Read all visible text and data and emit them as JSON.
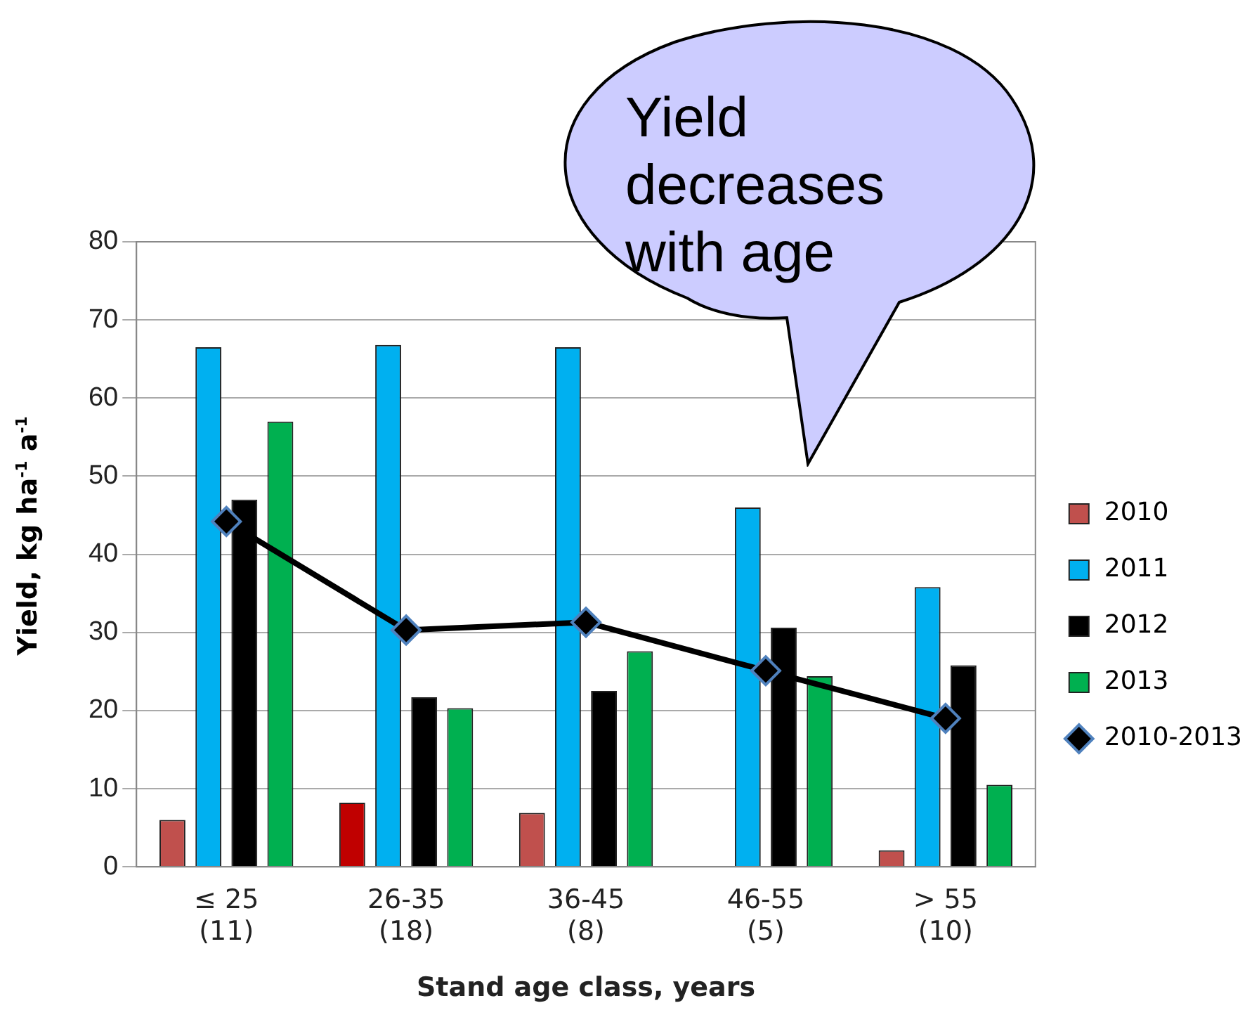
{
  "chart_data": {
    "type": "bar",
    "xlabel": "Stand age class, years",
    "ylabel": "Yield, kg ha$^{-1}$ a$^{-1}$",
    "categories": [
      "≤ 25\n(11)",
      "26-35\n(18)",
      "36-45\n(8)",
      "46-55\n(5)",
      "> 55\n(10)"
    ],
    "series": [
      {
        "name": "2010",
        "color": "#c0504d",
        "colors": [
          "#c0504d",
          "#c00000",
          "#c0504d",
          "#c0504d",
          "#c0504d"
        ],
        "values": [
          6,
          8.2,
          6.9,
          null,
          2.1
        ]
      },
      {
        "name": "2011",
        "color": "#00b0f0",
        "values": [
          66.5,
          66.8,
          66.5,
          46,
          35.8
        ]
      },
      {
        "name": "2012",
        "color": "#000000",
        "values": [
          47,
          21.7,
          22.5,
          30.6,
          25.8
        ]
      },
      {
        "name": "2013",
        "color": "#00b050",
        "values": [
          57,
          20.3,
          27.6,
          24.4,
          10.5
        ]
      },
      {
        "name": "2010-2013",
        "type": "line",
        "color": "#000000",
        "marker": "diamond",
        "values": [
          44.2,
          30.3,
          31.3,
          25.1,
          19.0
        ]
      }
    ],
    "ylim": [
      0,
      80
    ],
    "yticks": [
      0,
      10,
      20,
      30,
      40,
      50,
      60,
      70,
      80
    ],
    "grid": "y",
    "legend": "right",
    "annotations": [
      "Yield decreases with age"
    ]
  }
}
